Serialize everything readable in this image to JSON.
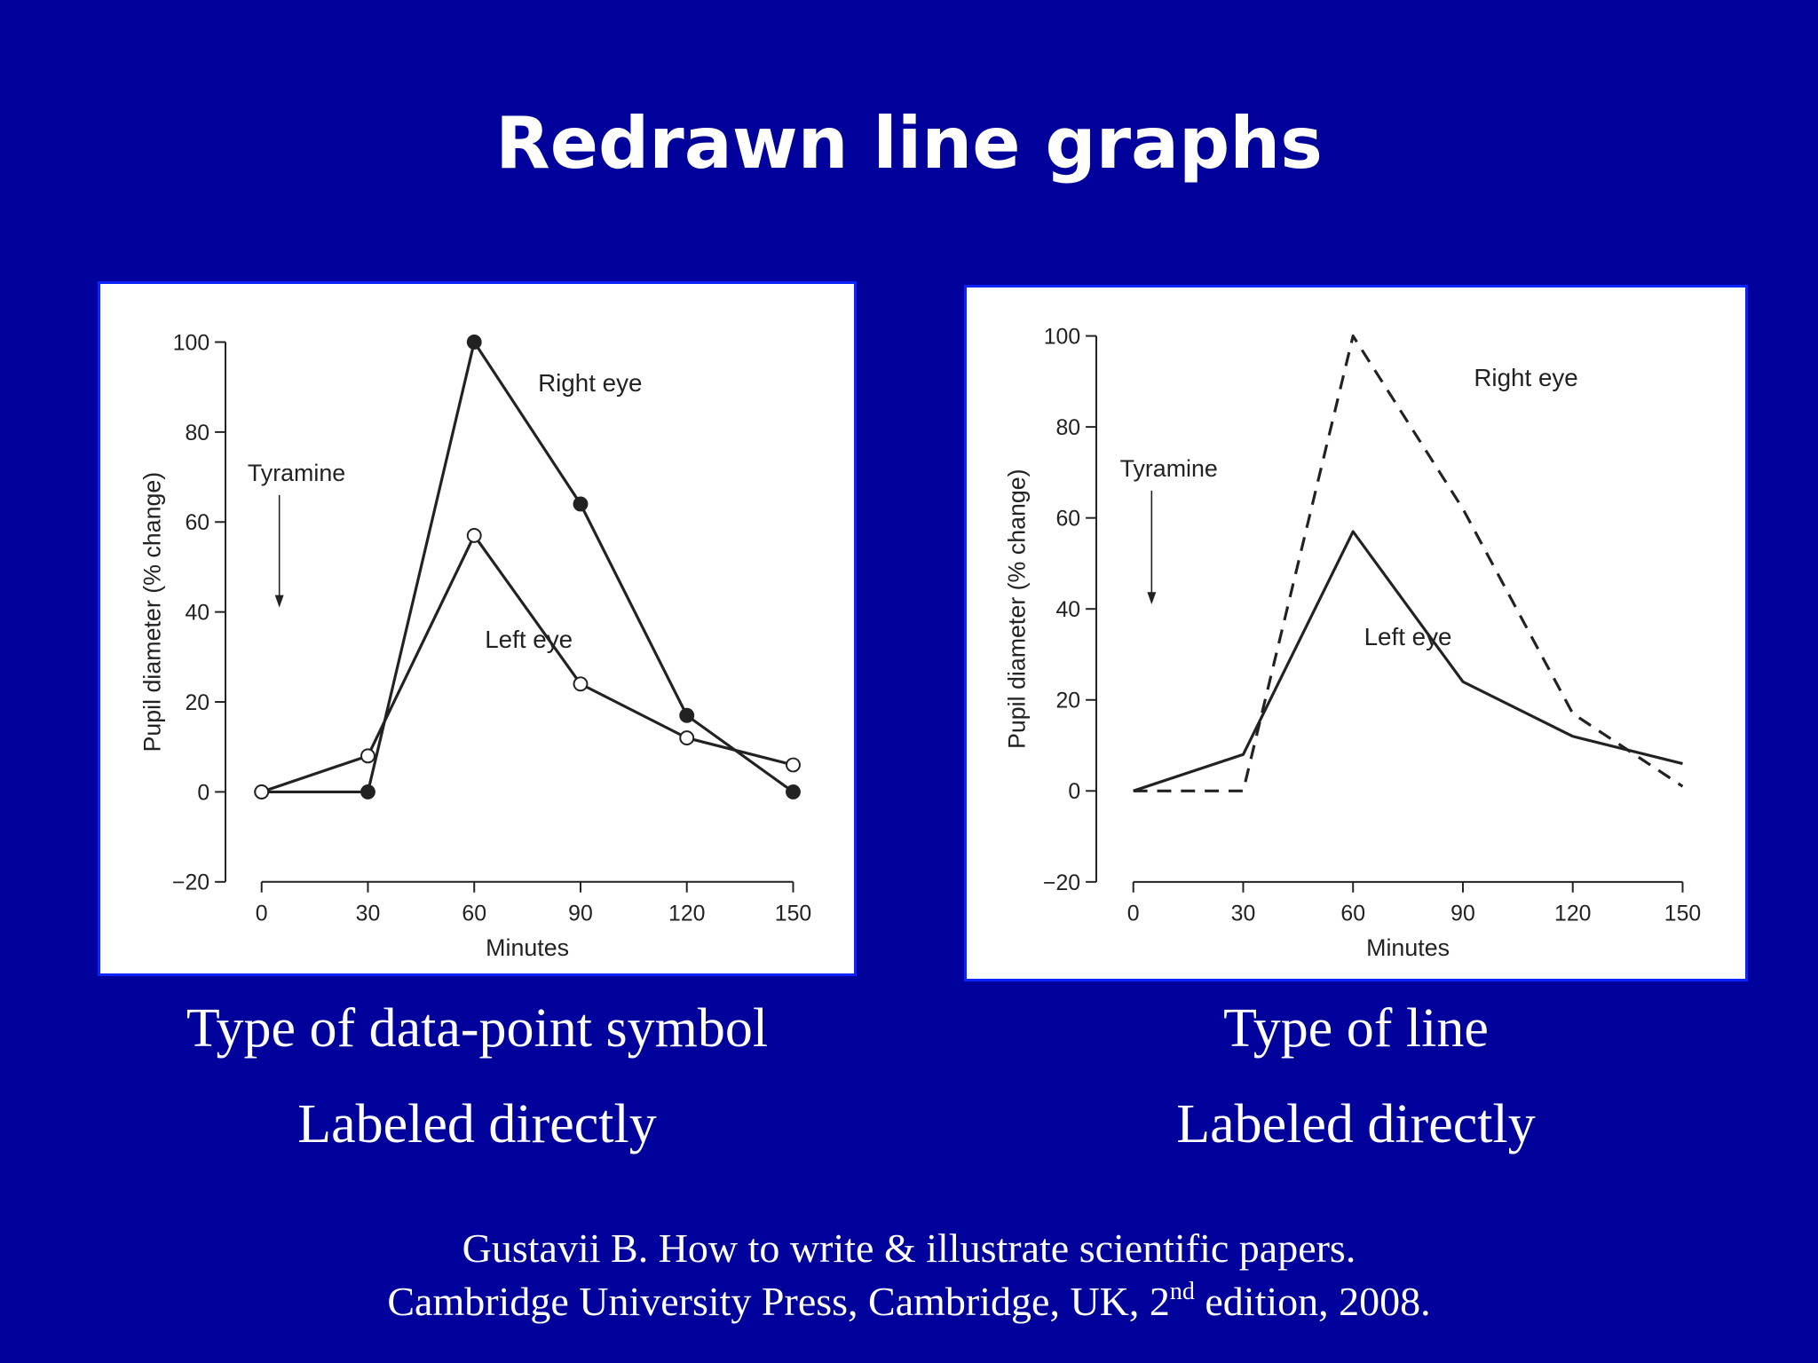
{
  "slide": {
    "title": "Redrawn line graphs",
    "left_caption_1": "Type of data-point symbol",
    "left_caption_2": "Labeled directly",
    "right_caption_1": "Type of line",
    "right_caption_2": "Labeled directly",
    "citation_line_1": "Gustavii B. How to write & illustrate scientific papers.",
    "citation_line_2_a": "Cambridge University Press, Cambridge, UK, 2",
    "citation_line_2_sup": "nd",
    "citation_line_2_b": " edition, 2008.",
    "background_color": "#01029c",
    "panel_border_color": "#0a24ff"
  },
  "chart_data": [
    {
      "type": "line",
      "style": "marker-symbols",
      "xlabel": "Minutes",
      "ylabel": "Pupil diameter (% change)",
      "xlim": [
        0,
        150
      ],
      "ylim": [
        -20,
        100
      ],
      "xticks": [
        0,
        30,
        60,
        90,
        120,
        150
      ],
      "yticks": [
        -20,
        0,
        20,
        40,
        60,
        80,
        100
      ],
      "grid": false,
      "legend": "none (direct labels)",
      "annotation": {
        "text": "Tyramine",
        "arrow_at_x": 5,
        "arrow_from_y": 66,
        "arrow_to_y": 41
      },
      "series": [
        {
          "name": "Right eye",
          "marker": "filled-circle",
          "line": "solid",
          "x": [
            0,
            30,
            60,
            90,
            120,
            150
          ],
          "y": [
            0,
            0,
            100,
            64,
            17,
            0
          ],
          "label_at": [
            78,
            89
          ]
        },
        {
          "name": "Left eye",
          "marker": "open-circle",
          "line": "solid",
          "x": [
            0,
            30,
            60,
            90,
            120,
            150
          ],
          "y": [
            0,
            8,
            57,
            24,
            12,
            6
          ],
          "label_at": [
            63,
            32
          ]
        }
      ]
    },
    {
      "type": "line",
      "style": "line-types",
      "xlabel": "Minutes",
      "ylabel": "Pupil diameter (% change)",
      "xlim": [
        0,
        150
      ],
      "ylim": [
        -20,
        100
      ],
      "xticks": [
        0,
        30,
        60,
        90,
        120,
        150
      ],
      "yticks": [
        -20,
        0,
        20,
        40,
        60,
        80,
        100
      ],
      "grid": false,
      "legend": "none (direct labels)",
      "annotation": {
        "text": "Tyramine",
        "arrow_at_x": 5,
        "arrow_from_y": 66,
        "arrow_to_y": 41
      },
      "series": [
        {
          "name": "Right eye",
          "marker": "none",
          "line": "dashed",
          "x": [
            0,
            30,
            60,
            90,
            120,
            150
          ],
          "y": [
            0,
            0,
            100,
            62,
            17,
            1
          ],
          "label_at": [
            93,
            89
          ]
        },
        {
          "name": "Left eye",
          "marker": "none",
          "line": "solid",
          "x": [
            0,
            30,
            60,
            90,
            120,
            150
          ],
          "y": [
            0,
            8,
            57,
            24,
            12,
            6
          ],
          "label_at": [
            63,
            32
          ]
        }
      ]
    }
  ]
}
